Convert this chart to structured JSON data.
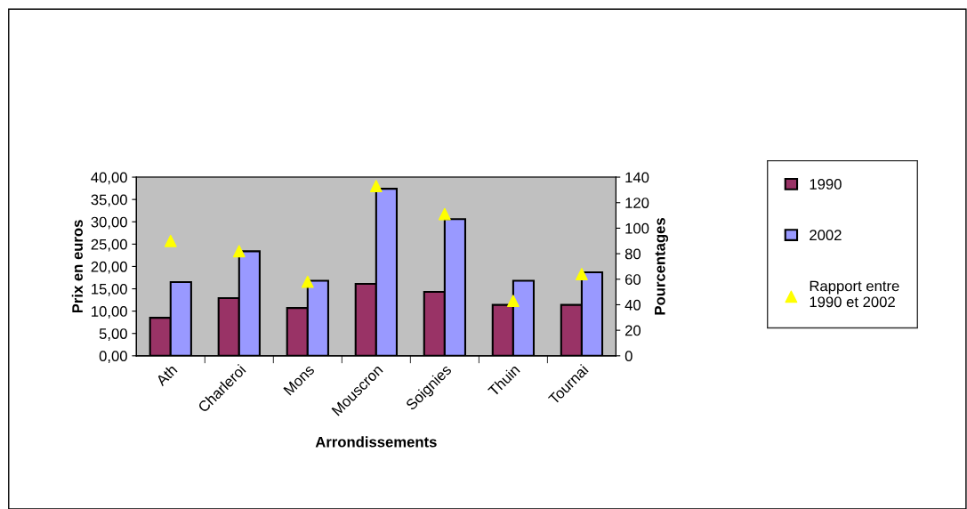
{
  "chart_data": {
    "type": "bar",
    "xlabel": "Arrondissements",
    "ylabel": "Prix en euros",
    "y2label": "Pourcentages",
    "categories": [
      "Ath",
      "Charleroi",
      "Mons",
      "Mouscron",
      "Soignies",
      "Thuin",
      "Tournai"
    ],
    "series": [
      {
        "name": "1990",
        "color": "#993366",
        "values": [
          8.5,
          12.9,
          10.7,
          16.1,
          14.3,
          11.4,
          11.4
        ]
      },
      {
        "name": "2002",
        "color": "#9999ff",
        "values": [
          16.5,
          23.4,
          16.8,
          37.4,
          30.6,
          16.8,
          18.7
        ]
      },
      {
        "name": "Rapport entre\n1990 et 2002",
        "type": "scatter",
        "axis": "y2",
        "color": "#ffff00",
        "marker": "triangle",
        "values": [
          90,
          82,
          58,
          133,
          111,
          43,
          64
        ]
      }
    ],
    "ylim": [
      0,
      40
    ],
    "yticks": [
      {
        "value": 0,
        "label": "0,00"
      },
      {
        "value": 5,
        "label": "5,00"
      },
      {
        "value": 10,
        "label": "10,00"
      },
      {
        "value": 15,
        "label": "15,00"
      },
      {
        "value": 20,
        "label": "20,00"
      },
      {
        "value": 25,
        "label": "25,00"
      },
      {
        "value": 30,
        "label": "30,00"
      },
      {
        "value": 35,
        "label": "35,00"
      },
      {
        "value": 40,
        "label": "40,00"
      }
    ],
    "y2lim": [
      0,
      140
    ],
    "y2ticks": [
      0,
      20,
      40,
      60,
      80,
      100,
      120,
      140
    ],
    "grid": false,
    "legend": "right"
  }
}
